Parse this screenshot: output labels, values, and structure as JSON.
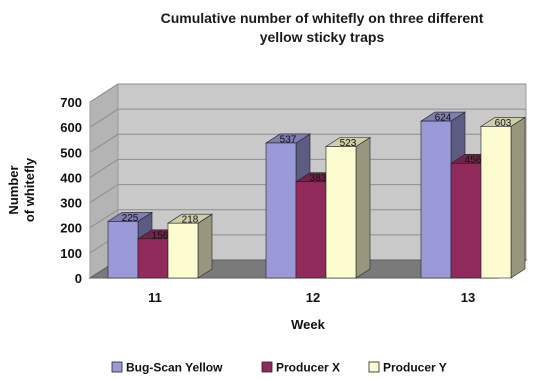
{
  "chart_data": {
    "type": "bar",
    "style": "3d-clustered-column",
    "title_lines": [
      "Cumulative number of whitefly on three different",
      "yellow sticky traps"
    ],
    "xlabel": "Week",
    "ylabel_lines": [
      "Number",
      "of whitefly"
    ],
    "categories": [
      "11",
      "12",
      "13"
    ],
    "ylim": [
      0,
      700
    ],
    "yticks": [
      0,
      100,
      200,
      300,
      400,
      500,
      600,
      700
    ],
    "grid": true,
    "legend_position": "bottom",
    "series": [
      {
        "name": "Bug-Scan Yellow",
        "values": [
          225,
          537,
          624
        ],
        "color": "#9a9ad8"
      },
      {
        "name": "Producer X",
        "values": [
          156,
          383,
          456
        ],
        "color": "#8f2a5a"
      },
      {
        "name": "Producer Y",
        "values": [
          218,
          523,
          603
        ],
        "color": "#fdfbd0"
      }
    ],
    "wall_color": "#c9c9c9",
    "floor_color": "#7a7a7a"
  }
}
